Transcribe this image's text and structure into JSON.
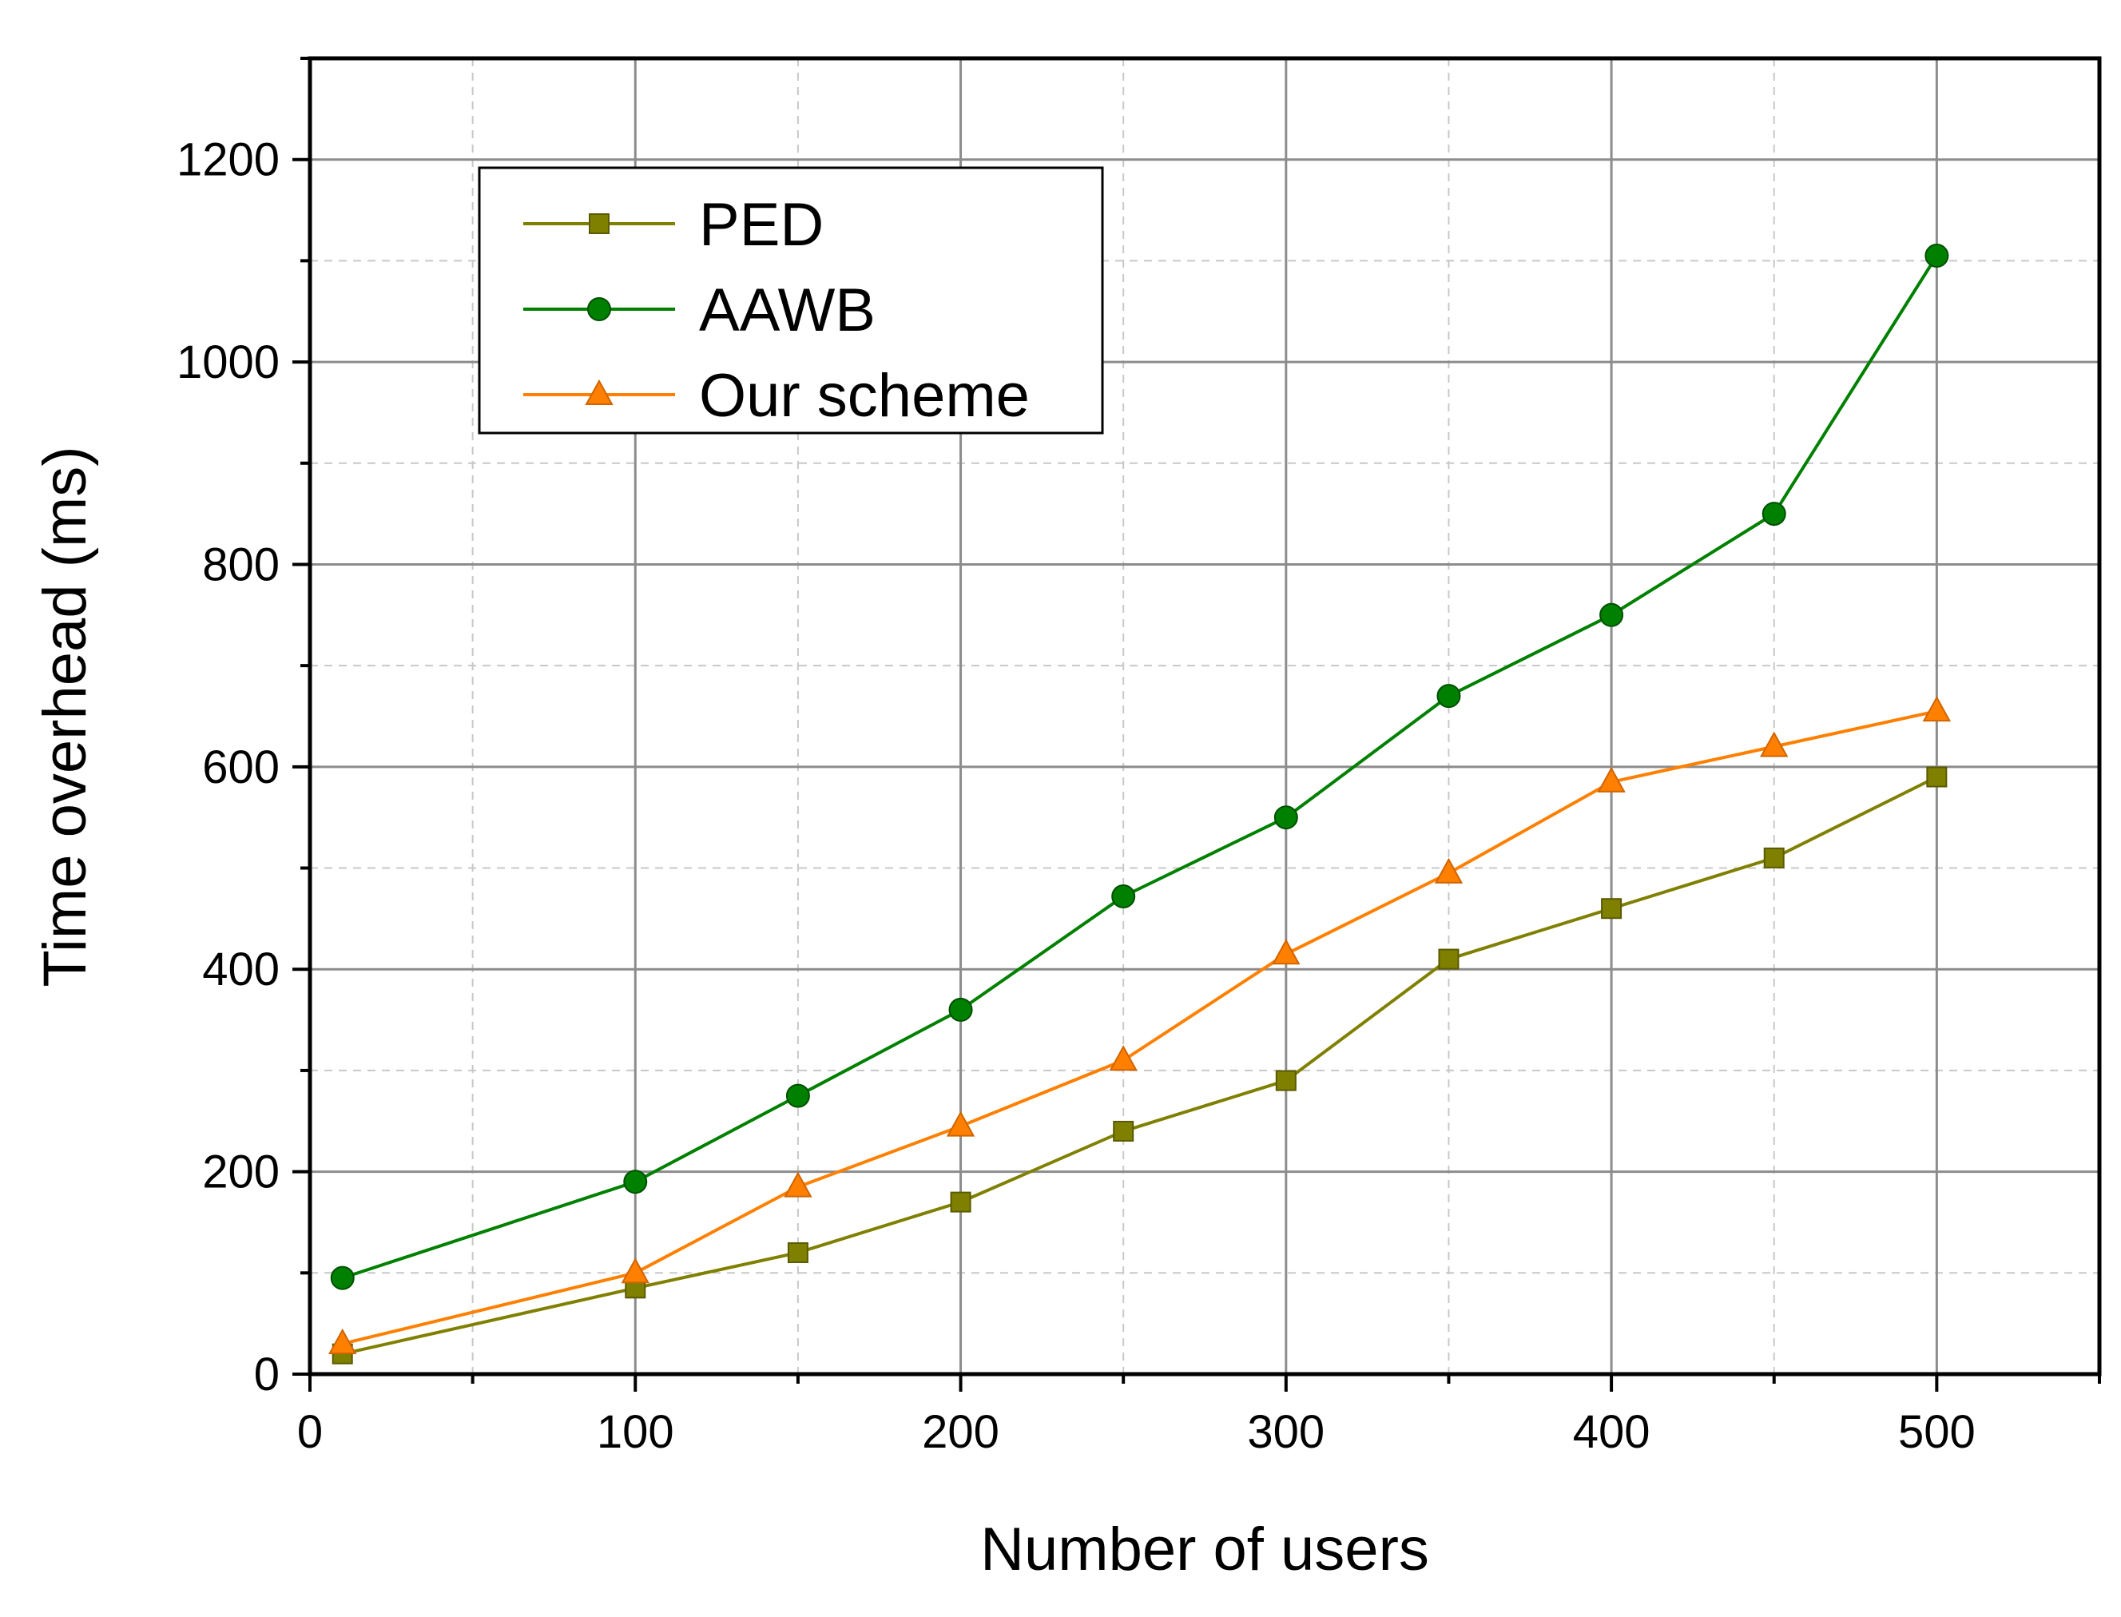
{
  "chart_data": {
    "type": "line",
    "title": "",
    "xlabel": "Number of users",
    "ylabel": "Time overhead (ms)",
    "xlim": [
      0,
      550
    ],
    "ylim": [
      0,
      1300
    ],
    "xticks": [
      0,
      100,
      200,
      300,
      400,
      500
    ],
    "yticks": [
      0,
      200,
      400,
      600,
      800,
      1000,
      1200
    ],
    "xtick_labels": [
      "0",
      "100",
      "200",
      "300",
      "400",
      "500"
    ],
    "ytick_labels": [
      "0",
      "200",
      "400",
      "600",
      "800",
      "1000",
      "1200"
    ],
    "grid": true,
    "legend_position": "top-left",
    "x": [
      10,
      100,
      150,
      200,
      250,
      300,
      350,
      400,
      450,
      500
    ],
    "series": [
      {
        "name": "PED",
        "color": "#808000",
        "marker": "square",
        "values": [
          20,
          85,
          120,
          170,
          240,
          290,
          410,
          460,
          510,
          590
        ]
      },
      {
        "name": "AAWB",
        "color": "#008000",
        "marker": "circle",
        "values": [
          95,
          190,
          275,
          360,
          472,
          550,
          670,
          750,
          850,
          1105
        ]
      },
      {
        "name": "Our scheme",
        "color": "#FF8000",
        "marker": "triangle",
        "values": [
          30,
          100,
          185,
          245,
          310,
          415,
          495,
          585,
          620,
          655
        ]
      }
    ]
  }
}
